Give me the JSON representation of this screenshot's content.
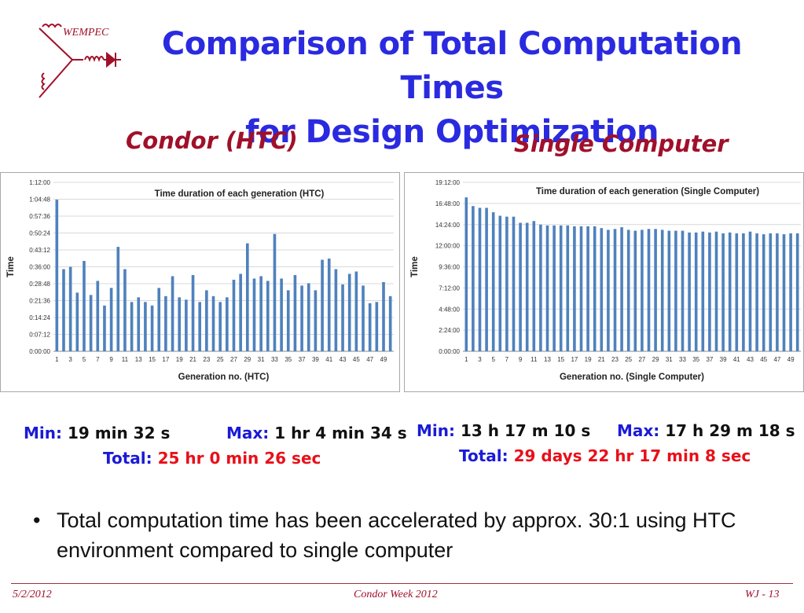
{
  "logo": {
    "text": "WEMPEC"
  },
  "slide": {
    "title_line1": "Comparison of Total Computation Times",
    "title_line2": "for Design Optimization"
  },
  "left": {
    "heading": "Condor (HTC)",
    "min_label": "Min:",
    "min_value": "19 min 32 s",
    "max_label": "Max:",
    "max_value": "1 hr 4 min 34 s",
    "total_label": "Total:",
    "total_value": "25 hr 0 min 26 sec"
  },
  "right": {
    "heading": "Single Computer",
    "min_label": "Min:",
    "min_value": "13 h 17 m 10 s",
    "max_label": "Max:",
    "max_value": "17 h 29 m 18 s",
    "total_label": "Total:",
    "total_value": "29 days 22 hr 17 min 8 sec"
  },
  "bullet": "Total computation time has been accelerated by approx. 30:1 using HTC environment compared to single computer",
  "footer": {
    "date": "5/2/2012",
    "center": "Condor Week 2012",
    "page": "WJ - 13"
  },
  "colors": {
    "bar": "#4f81bd",
    "title": "#2a2ae0",
    "heading": "#a0102a",
    "label_blue": "#1a1ad8",
    "total_red": "#e8101a"
  },
  "chart_data": [
    {
      "type": "bar",
      "title": "Time duration of each generation (HTC)",
      "xlabel": "Generation no. (HTC)",
      "ylabel": "Time",
      "y_unit": "minutes",
      "ylim": [
        0,
        72
      ],
      "ytick_values": [
        0,
        7.2,
        14.4,
        21.6,
        28.8,
        36,
        43.2,
        50.4,
        57.6,
        64.8,
        72
      ],
      "ytick_labels": [
        "0:00:00",
        "0:07:12",
        "0:14:24",
        "0:21:36",
        "0:28:48",
        "0:36:00",
        "0:43:12",
        "0:50:24",
        "0:57:36",
        "1:04:48",
        "1:12:00"
      ],
      "xtick_labels": [
        "1",
        "3",
        "5",
        "7",
        "9",
        "11",
        "13",
        "15",
        "17",
        "19",
        "21",
        "23",
        "25",
        "27",
        "29",
        "31",
        "33",
        "35",
        "37",
        "39",
        "41",
        "43",
        "45",
        "47",
        "49"
      ],
      "categories": [
        1,
        2,
        3,
        4,
        5,
        6,
        7,
        8,
        9,
        10,
        11,
        12,
        13,
        14,
        15,
        16,
        17,
        18,
        19,
        20,
        21,
        22,
        23,
        24,
        25,
        26,
        27,
        28,
        29,
        30,
        31,
        32,
        33,
        34,
        35,
        36,
        37,
        39,
        38,
        40,
        41,
        42,
        43,
        44,
        45,
        46,
        47,
        48,
        49,
        50
      ],
      "values": [
        64.6,
        35,
        36,
        25,
        38.5,
        24,
        30,
        19.5,
        27,
        44.5,
        35,
        21,
        23,
        21,
        19.5,
        27,
        23.5,
        32,
        23,
        22,
        32.5,
        21,
        26,
        23.5,
        21,
        23,
        30.5,
        33,
        46,
        31,
        32,
        30,
        50,
        31,
        26,
        32.5,
        28,
        29,
        26,
        39,
        39.5,
        35,
        28.5,
        33,
        34,
        28,
        20.5,
        21,
        29.5,
        23.5
      ]
    },
    {
      "type": "bar",
      "title": "Time duration of each generation (Single Computer)",
      "xlabel": "Generation no. (Single Computer)",
      "ylabel": "Time",
      "y_unit": "hours",
      "ylim": [
        0,
        19.2
      ],
      "ytick_values": [
        0,
        2.4,
        4.8,
        7.2,
        9.6,
        12,
        14.4,
        16.8,
        19.2
      ],
      "ytick_labels": [
        "0:00:00",
        "2:24:00",
        "4:48:00",
        "7:12:00",
        "9:36:00",
        "12:00:00",
        "14:24:00",
        "16:48:00",
        "19:12:00"
      ],
      "xtick_labels": [
        "1",
        "3",
        "5",
        "7",
        "9",
        "11",
        "13",
        "15",
        "17",
        "19",
        "21",
        "23",
        "25",
        "27",
        "29",
        "31",
        "33",
        "35",
        "37",
        "39",
        "41",
        "43",
        "45",
        "47",
        "49"
      ],
      "categories": [
        1,
        2,
        3,
        4,
        5,
        6,
        7,
        8,
        9,
        10,
        11,
        12,
        13,
        14,
        15,
        16,
        17,
        18,
        19,
        20,
        21,
        22,
        23,
        24,
        25,
        26,
        27,
        28,
        29,
        30,
        31,
        32,
        33,
        34,
        35,
        36,
        37,
        38,
        39,
        40,
        41,
        42,
        43,
        44,
        45,
        46,
        47,
        48,
        49,
        50
      ],
      "values": [
        17.49,
        16.5,
        16.3,
        16.3,
        15.8,
        15.4,
        15.3,
        15.3,
        14.6,
        14.6,
        14.8,
        14.4,
        14.3,
        14.3,
        14.3,
        14.3,
        14.2,
        14.2,
        14.2,
        14.2,
        14.0,
        13.8,
        13.9,
        14.1,
        13.8,
        13.7,
        13.8,
        13.9,
        13.9,
        13.8,
        13.7,
        13.7,
        13.7,
        13.5,
        13.5,
        13.6,
        13.5,
        13.6,
        13.4,
        13.5,
        13.4,
        13.4,
        13.6,
        13.4,
        13.3,
        13.4,
        13.4,
        13.3,
        13.4,
        13.4
      ]
    }
  ]
}
